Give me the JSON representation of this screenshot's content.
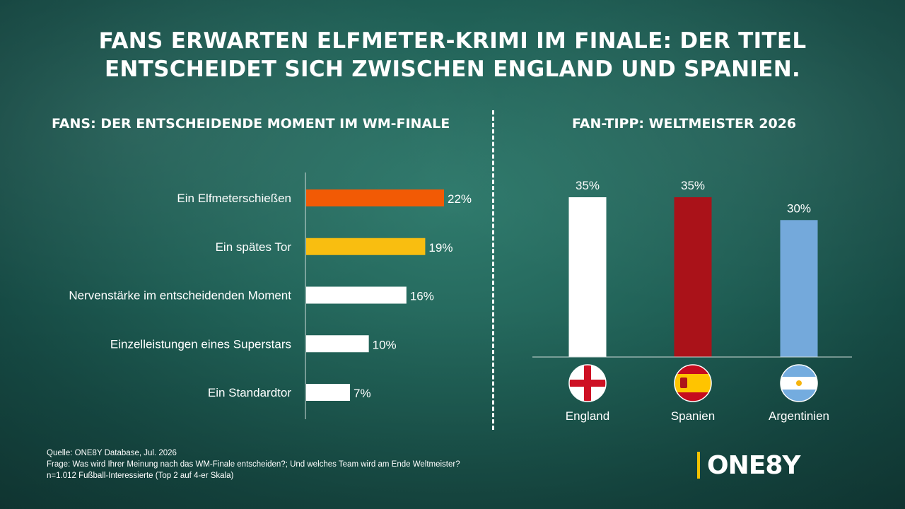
{
  "title": {
    "line1": "FANS ERWARTEN ELFMETER-KRIMI IM FINALE: DER TITEL",
    "line2": "ENTSCHEIDET SICH ZWISCHEN ENGLAND UND SPANIEN."
  },
  "footnote": {
    "source": "Quelle: ONE8Y Database, Jul. 2026",
    "question": "Frage: Was wird Ihrer Meinung nach das WM-Finale entscheiden?; Und welches Team wird am Ende Weltmeister?",
    "sample": "n=1.012 Fußball-Interessierte (Top 2 auf 4-er Skala)"
  },
  "logo": {
    "text": "ONE8Y",
    "accent": "#f2c200"
  },
  "chart_data": [
    {
      "type": "bar",
      "orientation": "horizontal",
      "title": "FANS: DER ENTSCHEIDENDE MOMENT IM WM-FINALE",
      "categories": [
        "Ein Elfmeterschießen",
        "Ein spätes Tor",
        "Nervenstärke im entscheidenden Moment",
        "Einzelleistungen eines Superstars",
        "Ein Standardtor"
      ],
      "values": [
        22,
        19,
        16,
        10,
        7
      ],
      "value_labels": [
        "22%",
        "19%",
        "16%",
        "10%",
        "7%"
      ],
      "colors": [
        "#f25a05",
        "#f9be10",
        "#ffffff",
        "#ffffff",
        "#ffffff"
      ],
      "unit": "%",
      "xlim": [
        0,
        22
      ]
    },
    {
      "type": "bar",
      "orientation": "vertical",
      "title": "FAN-TIPP: WELTMEISTER 2026",
      "categories": [
        "England",
        "Spanien",
        "Argentinien"
      ],
      "values": [
        35,
        35,
        30
      ],
      "value_labels": [
        "35%",
        "35%",
        "30%"
      ],
      "colors": [
        "#ffffff",
        "#aa1219",
        "#74a9db"
      ],
      "icons": [
        "england-flag-icon",
        "spain-flag-icon",
        "argentina-flag-icon"
      ],
      "unit": "%",
      "ylim": [
        0,
        35
      ]
    }
  ]
}
